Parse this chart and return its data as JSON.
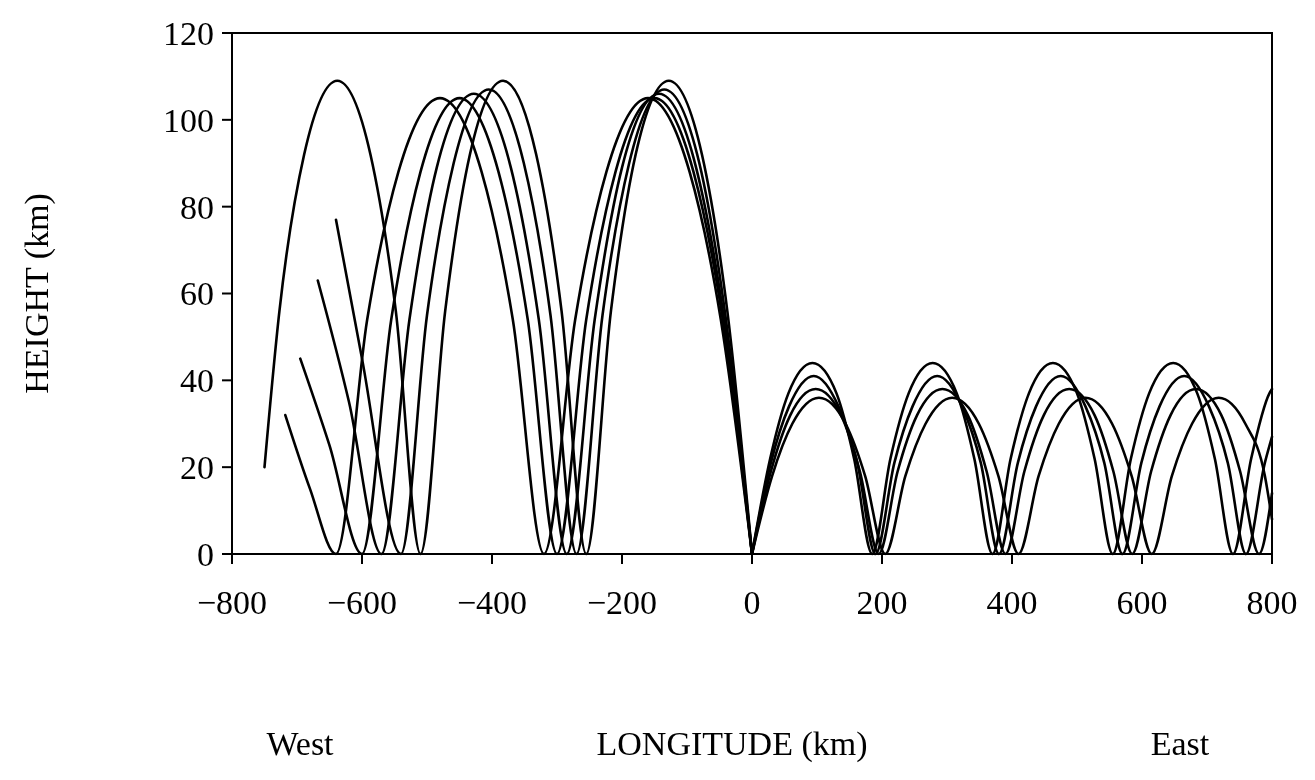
{
  "chart_data": {
    "type": "line",
    "xlabel": "LONGITUDE (km)",
    "ylabel": "HEIGHT (km)",
    "annotations": [
      "West",
      "East"
    ],
    "xlim": [
      -800,
      800
    ],
    "xticks": [
      -800,
      -600,
      -400,
      -200,
      0,
      200,
      400,
      600,
      800
    ],
    "ylim": [
      0,
      120
    ],
    "yticks": [
      0,
      20,
      40,
      60,
      80,
      100,
      120
    ],
    "line_style": "solid",
    "series": [
      {
        "color": "#000000",
        "x": [
          -750,
          -727,
          -689,
          -638,
          -587,
          -548,
          -510,
          -472,
          -434,
          -383,
          -332,
          -293,
          -255,
          -217,
          -179,
          -128,
          -77,
          -38,
          0
        ],
        "values": [
          20,
          56,
          92,
          109,
          92,
          56,
          0,
          56,
          92,
          109,
          92,
          56,
          0,
          56,
          92,
          109,
          92,
          56,
          0
        ]
      },
      {
        "color": "#000000",
        "x": [
          -640,
          -600,
          -540,
          -500,
          -459,
          -405,
          -351,
          -310,
          -270,
          -230,
          -189,
          -135,
          -81,
          -41,
          0
        ],
        "values": [
          77,
          45,
          0,
          55,
          90,
          107,
          90,
          55,
          0,
          55,
          90,
          107,
          90,
          55,
          0
        ]
      },
      {
        "color": "#000000",
        "x": [
          -668,
          -620,
          -570,
          -527,
          -485,
          -428,
          -371,
          -328,
          -285,
          -242,
          -200,
          -143,
          -86,
          -43,
          0
        ],
        "values": [
          63,
          35,
          0,
          54,
          89,
          106,
          89,
          54,
          0,
          54,
          89,
          106,
          89,
          54,
          0
        ]
      },
      {
        "color": "#000000",
        "x": [
          -695,
          -650,
          -600,
          -555,
          -510,
          -450,
          -390,
          -345,
          -300,
          -255,
          -210,
          -150,
          -90,
          -45,
          0
        ],
        "values": [
          45,
          25,
          0,
          54,
          88,
          105,
          88,
          54,
          0,
          54,
          88,
          105,
          88,
          54,
          0
        ]
      },
      {
        "color": "#000000",
        "x": [
          -718,
          -680,
          -640,
          -592,
          -544,
          -480,
          -416,
          -368,
          -320,
          -272,
          -224,
          -160,
          -96,
          -48,
          0
        ],
        "values": [
          32,
          15,
          0,
          54,
          88,
          105,
          88,
          54,
          0,
          54,
          88,
          105,
          88,
          54,
          0
        ]
      },
      {
        "color": "#000000",
        "x": [
          0,
          28,
          56,
          93,
          130,
          157,
          185,
          213,
          241,
          278,
          315,
          342,
          370,
          398,
          426,
          463,
          500,
          527,
          555,
          583,
          611,
          648,
          685,
          712,
          740,
          768,
          796,
          800
        ],
        "values": [
          0,
          22,
          37,
          44,
          37,
          22,
          0,
          22,
          37,
          44,
          37,
          22,
          0,
          22,
          37,
          44,
          37,
          22,
          0,
          22,
          37,
          44,
          37,
          22,
          0,
          22,
          37,
          38
        ]
      },
      {
        "color": "#000000",
        "x": [
          0,
          29,
          57,
          95,
          133,
          162,
          190,
          219,
          247,
          285,
          323,
          352,
          380,
          409,
          437,
          475,
          513,
          542,
          570,
          599,
          627,
          665,
          703,
          732,
          760,
          789,
          800
        ],
        "values": [
          0,
          21,
          34,
          41,
          34,
          21,
          0,
          21,
          34,
          41,
          34,
          21,
          0,
          21,
          34,
          41,
          34,
          21,
          0,
          21,
          34,
          41,
          34,
          21,
          0,
          21,
          27
        ]
      },
      {
        "color": "#000000",
        "x": [
          0,
          29,
          59,
          98,
          137,
          166,
          195,
          224,
          254,
          293,
          332,
          361,
          390,
          419,
          449,
          488,
          527,
          556,
          585,
          614,
          644,
          683,
          722,
          751,
          780,
          800
        ],
        "values": [
          0,
          19,
          32,
          38,
          32,
          19,
          0,
          19,
          32,
          38,
          32,
          19,
          0,
          19,
          32,
          38,
          32,
          19,
          0,
          19,
          32,
          38,
          32,
          19,
          0,
          14
        ]
      },
      {
        "color": "#000000",
        "x": [
          0,
          31,
          62,
          103,
          144,
          174,
          205,
          236,
          267,
          308,
          349,
          379,
          410,
          441,
          472,
          513,
          554,
          584,
          615,
          646,
          677,
          718,
          759,
          789,
          800
        ],
        "values": [
          0,
          18,
          30,
          36,
          30,
          18,
          0,
          18,
          30,
          36,
          30,
          18,
          0,
          18,
          30,
          36,
          30,
          18,
          0,
          18,
          30,
          36,
          30,
          18,
          8
        ]
      }
    ]
  }
}
